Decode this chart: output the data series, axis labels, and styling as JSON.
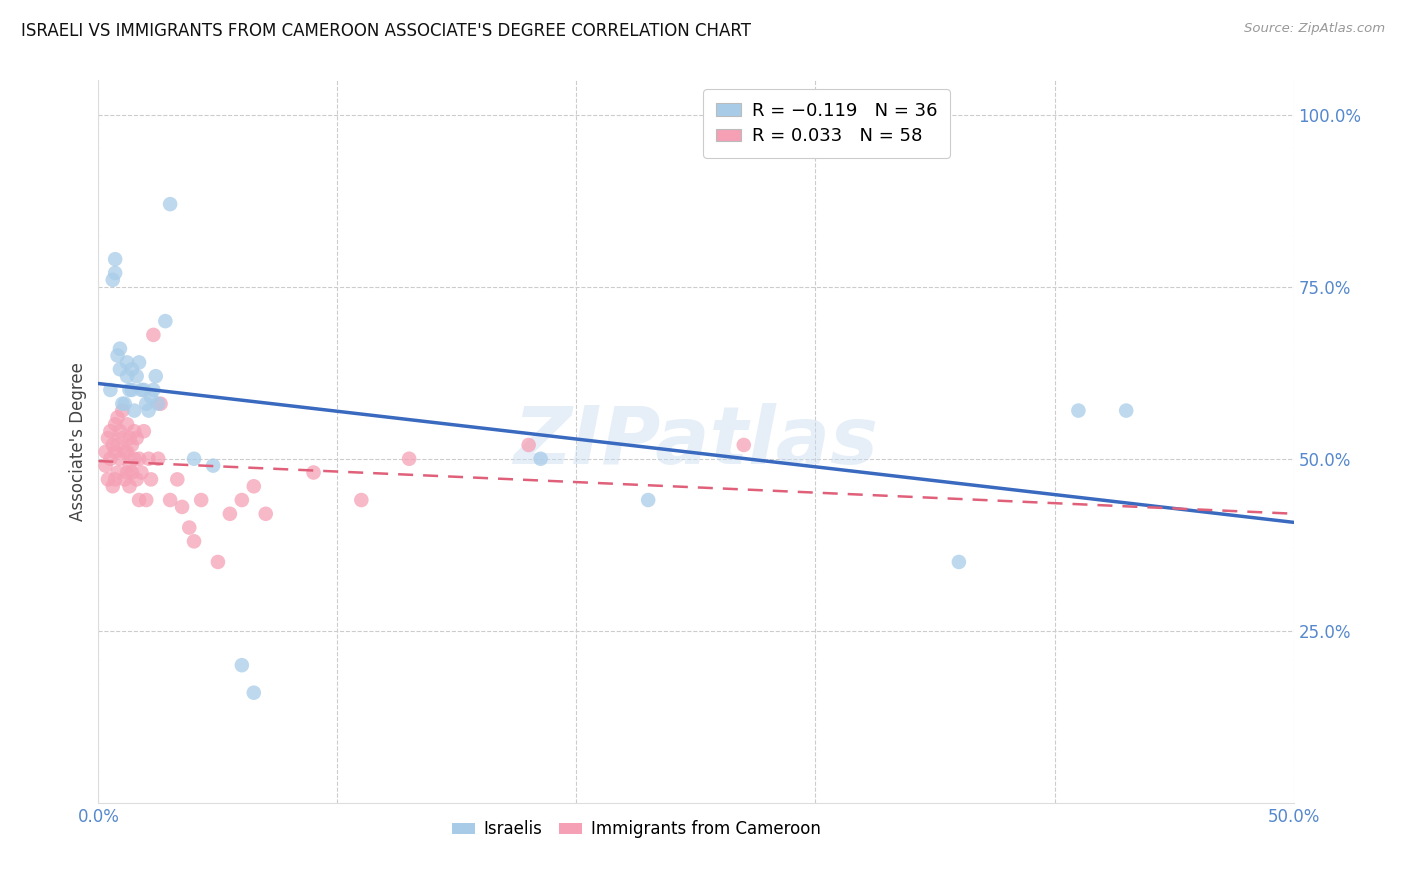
{
  "title": "ISRAELI VS IMMIGRANTS FROM CAMEROON ASSOCIATE'S DEGREE CORRELATION CHART",
  "source": "Source: ZipAtlas.com",
  "ylabel": "Associate's Degree",
  "watermark": "ZIPatlas",
  "xlim": [
    0.0,
    0.5
  ],
  "ylim": [
    0.0,
    1.05
  ],
  "xtick_pos": [
    0.0,
    0.1,
    0.2,
    0.3,
    0.4,
    0.5
  ],
  "xtick_labels": [
    "0.0%",
    "",
    "",
    "",
    "",
    "50.0%"
  ],
  "ytick_labels_right": [
    "100.0%",
    "75.0%",
    "50.0%",
    "25.0%"
  ],
  "ytick_positions_right": [
    1.0,
    0.75,
    0.5,
    0.25
  ],
  "blue_color": "#a8cce8",
  "pink_color": "#f5a0b5",
  "blue_line_color": "#3a6abf",
  "pink_line_color": "#e0607a",
  "israelis_x": [
    0.005,
    0.006,
    0.007,
    0.007,
    0.008,
    0.009,
    0.009,
    0.01,
    0.011,
    0.012,
    0.012,
    0.013,
    0.014,
    0.014,
    0.015,
    0.016,
    0.017,
    0.018,
    0.019,
    0.02,
    0.021,
    0.022,
    0.023,
    0.024,
    0.025,
    0.028,
    0.03,
    0.04,
    0.048,
    0.06,
    0.065,
    0.185,
    0.23,
    0.36,
    0.41,
    0.43
  ],
  "israelis_y": [
    0.6,
    0.76,
    0.77,
    0.79,
    0.65,
    0.63,
    0.66,
    0.58,
    0.58,
    0.62,
    0.64,
    0.6,
    0.6,
    0.63,
    0.57,
    0.62,
    0.64,
    0.6,
    0.6,
    0.58,
    0.57,
    0.59,
    0.6,
    0.62,
    0.58,
    0.7,
    0.87,
    0.5,
    0.49,
    0.2,
    0.16,
    0.5,
    0.44,
    0.35,
    0.57,
    0.57
  ],
  "cameroon_x": [
    0.003,
    0.003,
    0.004,
    0.004,
    0.005,
    0.005,
    0.006,
    0.006,
    0.007,
    0.007,
    0.007,
    0.008,
    0.008,
    0.008,
    0.009,
    0.009,
    0.01,
    0.01,
    0.011,
    0.011,
    0.012,
    0.012,
    0.012,
    0.013,
    0.013,
    0.013,
    0.014,
    0.014,
    0.015,
    0.015,
    0.016,
    0.016,
    0.017,
    0.017,
    0.018,
    0.019,
    0.02,
    0.021,
    0.022,
    0.023,
    0.025,
    0.026,
    0.03,
    0.033,
    0.035,
    0.038,
    0.04,
    0.043,
    0.05,
    0.055,
    0.06,
    0.065,
    0.07,
    0.09,
    0.11,
    0.13,
    0.18,
    0.27
  ],
  "cameroon_y": [
    0.51,
    0.49,
    0.53,
    0.47,
    0.54,
    0.5,
    0.52,
    0.46,
    0.55,
    0.51,
    0.47,
    0.56,
    0.52,
    0.48,
    0.54,
    0.5,
    0.57,
    0.53,
    0.51,
    0.47,
    0.55,
    0.51,
    0.48,
    0.53,
    0.49,
    0.46,
    0.52,
    0.48,
    0.54,
    0.5,
    0.53,
    0.47,
    0.5,
    0.44,
    0.48,
    0.54,
    0.44,
    0.5,
    0.47,
    0.68,
    0.5,
    0.58,
    0.44,
    0.47,
    0.43,
    0.4,
    0.38,
    0.44,
    0.35,
    0.42,
    0.44,
    0.46,
    0.42,
    0.48,
    0.44,
    0.5,
    0.52,
    0.52
  ]
}
